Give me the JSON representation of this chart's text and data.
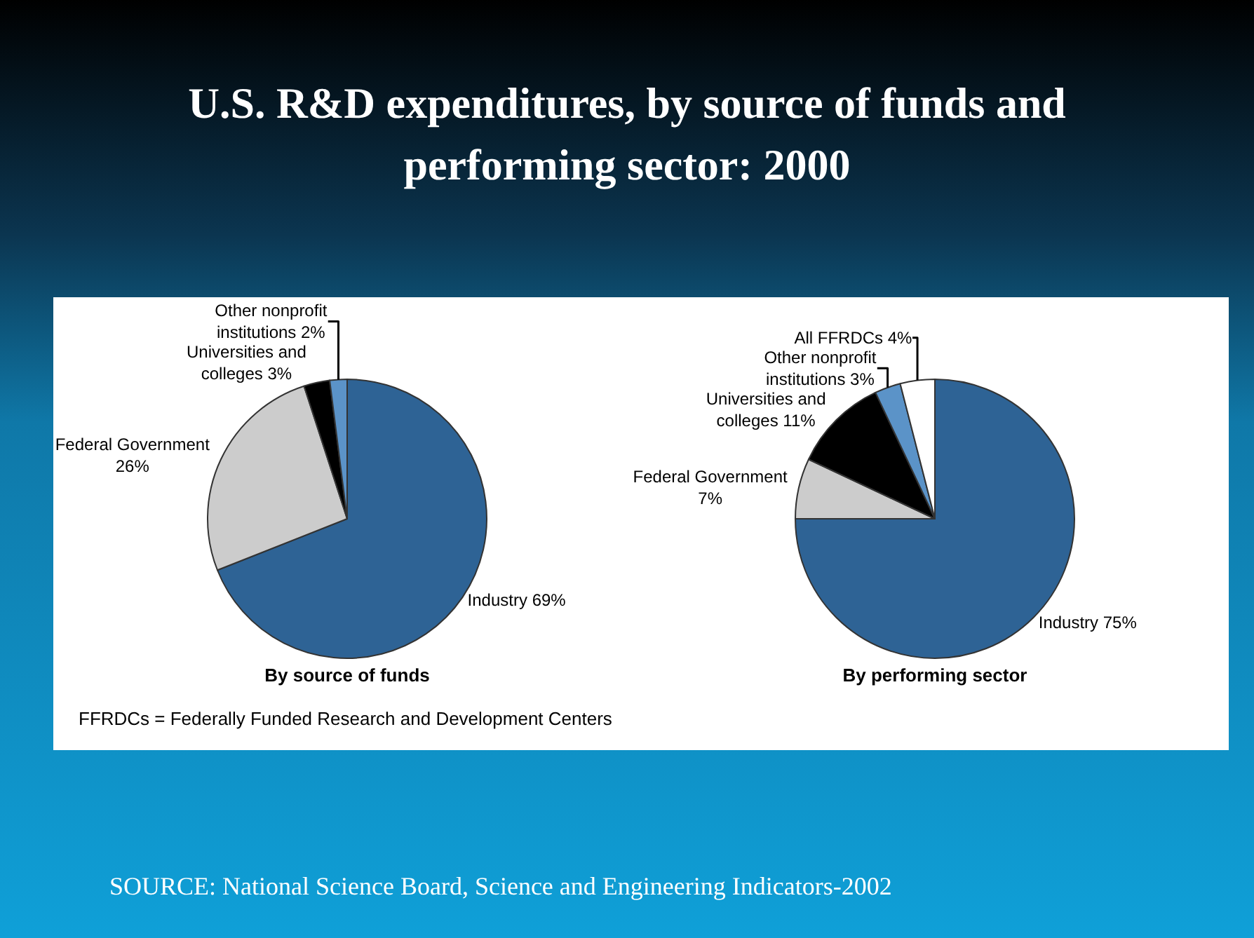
{
  "chart_data": [
    {
      "type": "pie",
      "title": "U.S. R&D expenditures, by source of funds and performing sector: 2000",
      "xlabel": "By source of funds",
      "categories": [
        "Industry",
        "Federal Government",
        "Universities and colleges",
        "Other nonprofit institutions"
      ],
      "values": [
        69,
        26,
        3,
        2
      ],
      "value_labels": [
        "69%",
        "26%",
        "3%",
        "2%"
      ],
      "colors": [
        "#2e6395",
        "#cccccc",
        "#000000",
        "#5b93c8"
      ],
      "annotations": [
        "FFRDCs = Federally Funded Research and Development Centers",
        "SOURCE: National Science Board, Science and Engineering Indicators-2002"
      ]
    },
    {
      "type": "pie",
      "xlabel": "By performing sector",
      "categories": [
        "Industry",
        "Federal Government",
        "Universities and colleges",
        "Other nonprofit institutions",
        "All FFRDCs"
      ],
      "values": [
        75,
        7,
        11,
        3,
        4
      ],
      "value_labels": [
        "75%",
        "7%",
        "11%",
        "3%",
        "4%"
      ],
      "colors": [
        "#2e6395",
        "#cccccc",
        "#000000",
        "#5b93c8",
        "#ffffff"
      ]
    }
  ]
}
